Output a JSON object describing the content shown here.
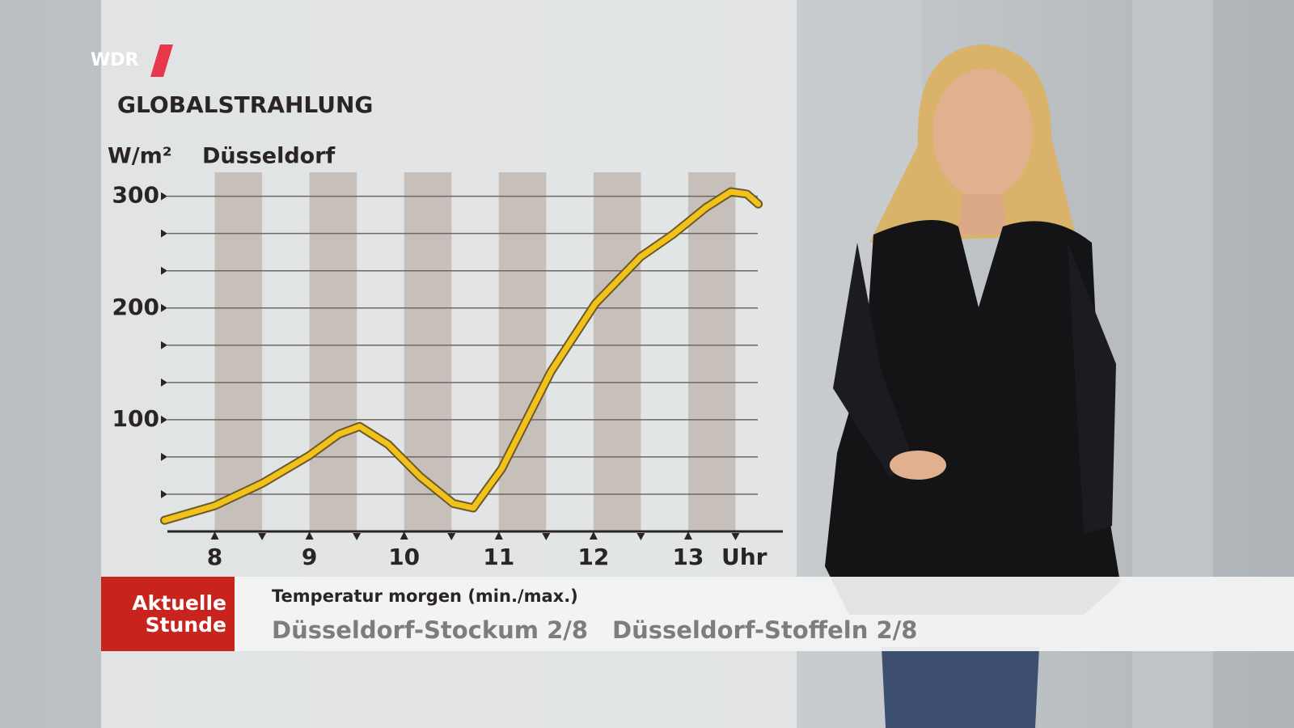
{
  "logo": "WDR",
  "chart_data": {
    "type": "line",
    "title": "GLOBALSTRAHLUNG",
    "subtitle": "Düsseldorf",
    "y_label": "W/m²",
    "x_label": "Uhr",
    "xlim": [
      7.5,
      14
    ],
    "xticks": [
      8,
      9,
      10,
      11,
      12,
      13
    ],
    "ylim": [
      0,
      320
    ],
    "yticks": [
      100,
      200,
      300
    ],
    "yminorticks": [
      33.3,
      66.7,
      133.3,
      166.7,
      233.3,
      266.7
    ],
    "grid": true,
    "series": [
      {
        "color": "#f2c21a",
        "x": [
          7.47,
          8,
          8.5,
          9,
          9.31,
          9.53,
          9.83,
          10.17,
          10.52,
          10.73,
          11.03,
          11.55,
          12.02,
          12.5,
          12.84,
          13.19,
          13.45,
          13.62,
          13.74
        ],
        "values": [
          10,
          23,
          43,
          68,
          87,
          94,
          78,
          49,
          25,
          21,
          56,
          143,
          204,
          246,
          266,
          290,
          304,
          302,
          293
        ]
      }
    ]
  },
  "ticker": {
    "label": "Aktuelle Stunde",
    "heading": "Temperatur morgen (min./max.)",
    "items": [
      "Düsseldorf-Stockum 2/8",
      "Düsseldorf-Stoffeln 2/8"
    ]
  }
}
